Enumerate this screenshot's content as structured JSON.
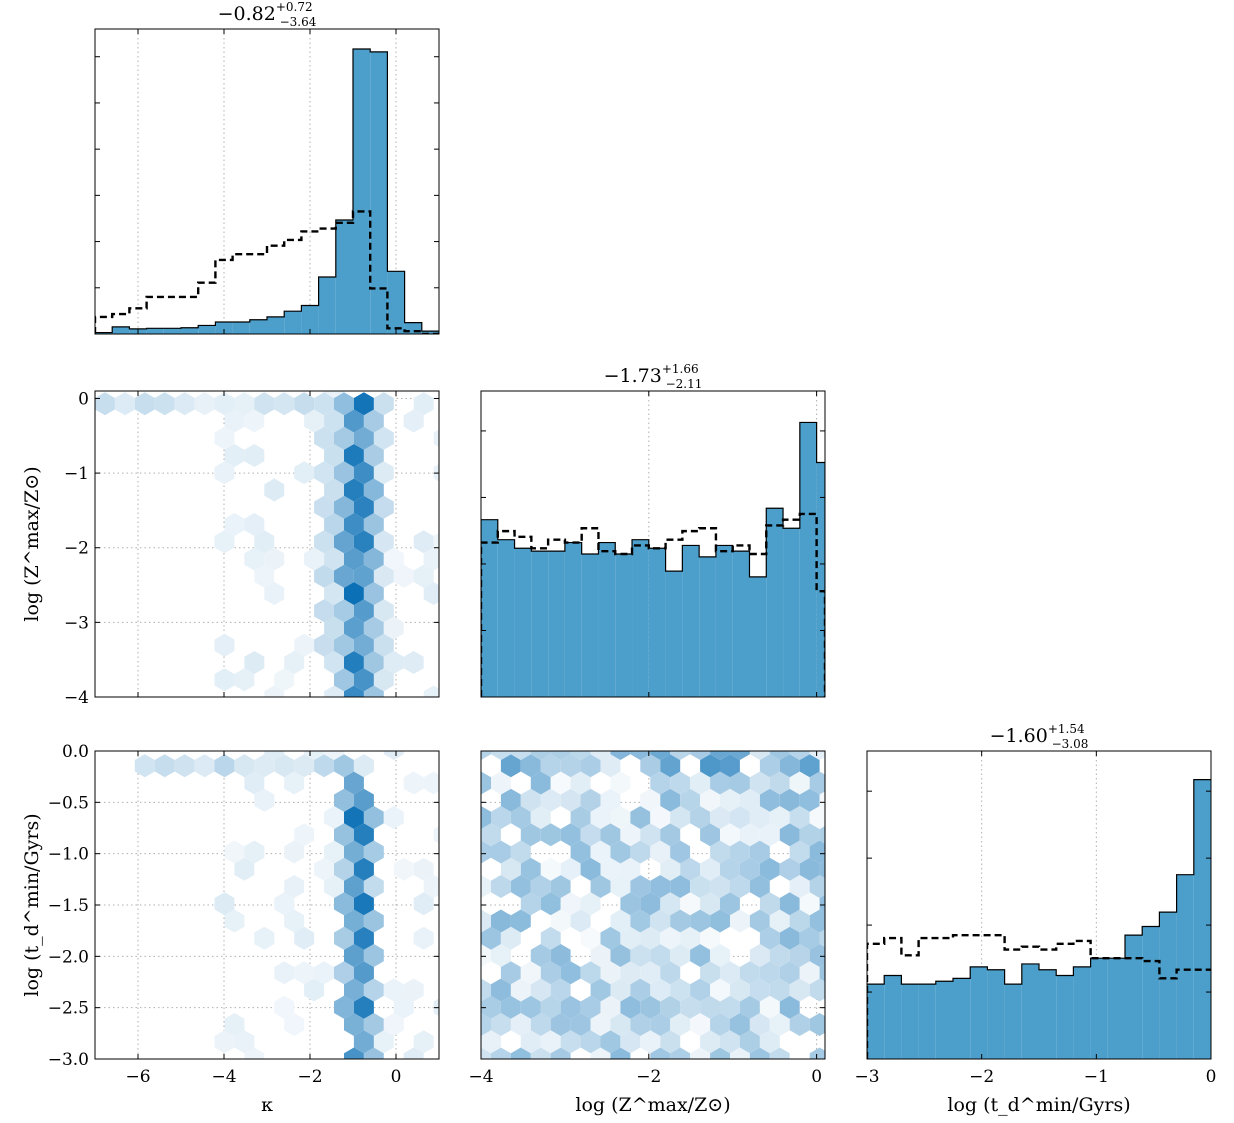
{
  "chart_data": {
    "type": "corner",
    "colors": {
      "fill": "#4c9fcb",
      "hex_max": "#0a6fb5",
      "dashed": "#000000",
      "grid": "#b0b0b0"
    },
    "titles": [
      {
        "value": "−0.82",
        "upper": "+0.72",
        "lower": "−3.64"
      },
      {
        "value": "−1.73",
        "upper": "+1.66",
        "lower": "−2.11"
      },
      {
        "value": "−1.60",
        "upper": "+1.54",
        "lower": "−3.08"
      }
    ],
    "axis_labels": {
      "x": [
        "κ",
        "log (Z^max/Z⊙)",
        "log (t_d^min/Gyrs)"
      ],
      "y": [
        "log (Z^max/Z⊙)",
        "log (t_d^min/Gyrs)"
      ]
    },
    "variables": [
      {
        "name": "kappa",
        "range": [
          -7,
          1
        ]
      },
      {
        "name": "logZmax",
        "range": [
          -4,
          0.1
        ]
      },
      {
        "name": "logtdmin",
        "range": [
          -3,
          0
        ]
      }
    ],
    "x_ticks": [
      {
        "values": [
          -6,
          -4,
          -2,
          0
        ],
        "labels": [
          "−6",
          "−4",
          "−2",
          "0"
        ]
      },
      {
        "values": [
          -4,
          -2,
          0
        ],
        "labels": [
          "−4",
          "−2",
          "0"
        ]
      },
      {
        "values": [
          -3,
          -2,
          -1,
          0
        ],
        "labels": [
          "−3",
          "−2",
          "−1",
          "0"
        ]
      }
    ],
    "y_ticks": [
      {
        "values": [
          0,
          -1,
          -2,
          -3,
          -4
        ],
        "labels": [
          "0",
          "−1",
          "−2",
          "−3",
          "−4"
        ]
      },
      {
        "values": [
          0.0,
          -0.5,
          -1.0,
          -1.5,
          -2.0,
          -2.5,
          -3.0
        ],
        "labels": [
          "0.0",
          "−0.5",
          "−1.0",
          "−1.5",
          "−2.0",
          "−2.5",
          "−3.0"
        ]
      }
    ],
    "hist_kappa": {
      "edges": [
        -7,
        -6.6,
        -6.2,
        -5.8,
        -5.4,
        -5.0,
        -4.6,
        -4.2,
        -3.8,
        -3.4,
        -3.0,
        -2.6,
        -2.2,
        -1.8,
        -1.4,
        -1.0,
        -0.6,
        -0.2,
        0.2,
        0.6,
        1.0
      ],
      "filled": [
        0.005,
        0.025,
        0.018,
        0.02,
        0.02,
        0.022,
        0.03,
        0.042,
        0.042,
        0.05,
        0.06,
        0.08,
        0.1,
        0.2,
        0.4,
        1.0,
        0.99,
        0.22,
        0.04,
        0.01
      ],
      "dashed": [
        0.06,
        0.07,
        0.09,
        0.13,
        0.13,
        0.13,
        0.18,
        0.26,
        0.28,
        0.28,
        0.31,
        0.33,
        0.36,
        0.37,
        0.39,
        0.43,
        0.16,
        0.02,
        0.01,
        0.0
      ]
    },
    "hist_logZmax": {
      "edges": [
        -4.0,
        -3.8,
        -3.6,
        -3.4,
        -3.2,
        -3.0,
        -2.8,
        -2.6,
        -2.4,
        -2.2,
        -2.0,
        -1.8,
        -1.6,
        -1.4,
        -1.2,
        -1.0,
        -0.8,
        -0.6,
        -0.4,
        -0.2,
        0.0,
        0.1
      ],
      "filled": [
        0.62,
        0.55,
        0.52,
        0.51,
        0.51,
        0.54,
        0.5,
        0.54,
        0.5,
        0.55,
        0.52,
        0.44,
        0.53,
        0.49,
        0.53,
        0.51,
        0.42,
        0.66,
        0.59,
        0.96,
        0.82
      ],
      "dashed": [
        0.54,
        0.58,
        0.56,
        0.52,
        0.55,
        0.54,
        0.59,
        0.51,
        0.5,
        0.53,
        0.52,
        0.55,
        0.58,
        0.59,
        0.51,
        0.53,
        0.5,
        0.6,
        0.62,
        0.64,
        0.37
      ]
    },
    "hist_logtdmin": {
      "edges": [
        -3.0,
        -2.85,
        -2.7,
        -2.55,
        -2.4,
        -2.25,
        -2.1,
        -1.95,
        -1.8,
        -1.65,
        -1.5,
        -1.35,
        -1.2,
        -1.05,
        -0.9,
        -0.75,
        -0.6,
        -0.45,
        -0.3,
        -0.15,
        0.0
      ],
      "filled": [
        0.26,
        0.29,
        0.26,
        0.26,
        0.27,
        0.28,
        0.32,
        0.31,
        0.26,
        0.33,
        0.31,
        0.29,
        0.32,
        0.35,
        0.35,
        0.43,
        0.46,
        0.51,
        0.64,
        0.97,
        0.97
      ],
      "dashed": [
        0.4,
        0.42,
        0.36,
        0.42,
        0.42,
        0.43,
        0.43,
        0.43,
        0.38,
        0.39,
        0.38,
        0.4,
        0.41,
        0.35,
        0.35,
        0.35,
        0.34,
        0.28,
        0.31,
        0.31,
        0.31
      ]
    },
    "hex_kappa_logZmax": {
      "ridges": [
        {
          "x": -0.9,
          "y0": -3.9,
          "y1": 0,
          "weight": 1.0
        },
        {
          "x": -1.2,
          "y0": -3.9,
          "y1": 0,
          "weight": 0.65
        },
        {
          "x": -0.6,
          "y0": -3.9,
          "y1": 0,
          "weight": 0.55
        },
        {
          "x": -1.5,
          "y0": -3.5,
          "y1": 0,
          "weight": 0.3
        },
        {
          "x": -0.3,
          "y0": -3.9,
          "y1": 0,
          "weight": 0.25
        }
      ],
      "top_band": {
        "y": -0.05,
        "x0": -6.8,
        "x1": -0.2,
        "weight": 0.2
      }
    },
    "hex_kappa_logtdmin": {
      "ridges": [
        {
          "x": -0.9,
          "y0": -3.0,
          "y1": -0.3,
          "weight": 1.0
        },
        {
          "x": -1.2,
          "y0": -2.5,
          "y1": -0.1,
          "weight": 0.55
        },
        {
          "x": -0.6,
          "y0": -3.0,
          "y1": -0.5,
          "weight": 0.45
        }
      ],
      "top_band": {
        "y": -0.1,
        "x0": -6.0,
        "x1": -0.3,
        "weight": 0.3
      }
    },
    "hex_logZmax_logtdmin": {
      "mean_weight": 0.35,
      "top_band_y": -0.1
    }
  }
}
